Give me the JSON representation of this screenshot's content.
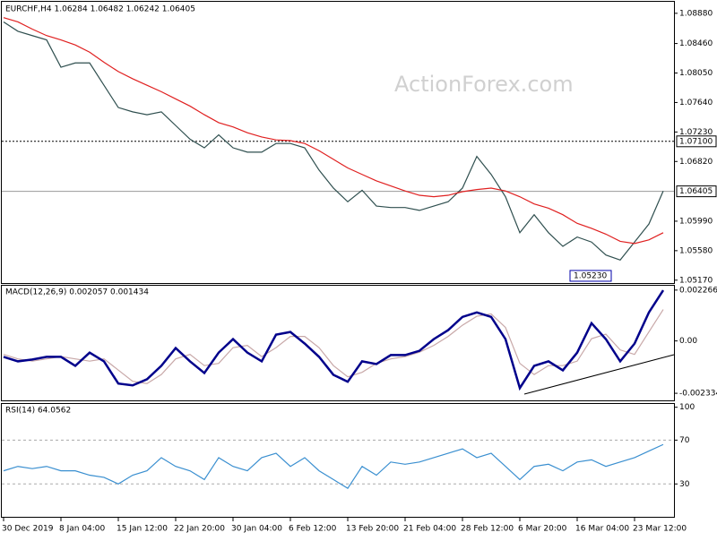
{
  "chart_data": [
    {
      "type": "line",
      "title": "EURCHF,H4  1.06284 1.06482 1.06242 1.06405",
      "watermark": "ActionForex.com",
      "ylim": [
        1.0513,
        1.0904
      ],
      "yticks": [
        {
          "value": 1.0888,
          "label": "1.08880"
        },
        {
          "value": 1.0846,
          "label": "1.08460"
        },
        {
          "value": 1.0805,
          "label": "1.08050"
        },
        {
          "value": 1.0764,
          "label": "1.07640"
        },
        {
          "value": 1.0723,
          "label": "1.07230"
        },
        {
          "value": 1.0682,
          "label": "1.06820"
        },
        {
          "value": 1.0599,
          "label": "1.05990"
        },
        {
          "value": 1.0558,
          "label": "1.05580"
        },
        {
          "value": 1.0517,
          "label": "1.05170"
        }
      ],
      "levels": [
        {
          "value": 1.071,
          "label": "1.07100"
        },
        {
          "value": 1.06405,
          "label": "1.06405"
        }
      ],
      "low_label": {
        "value": 1.0523,
        "label": "1.05230"
      },
      "series": [
        {
          "color": "#2f4f4f",
          "values": [
            1.0876,
            1.0863,
            1.0857,
            1.0851,
            1.0813,
            1.0819,
            1.0819,
            1.0788,
            1.0757,
            1.0751,
            1.0747,
            1.0751,
            1.0732,
            1.0713,
            1.0701,
            1.0719,
            1.0701,
            1.0695,
            1.0695,
            1.0707,
            1.0707,
            1.0701,
            1.067,
            1.0645,
            1.0626,
            1.0642,
            1.062,
            1.0618,
            1.0618,
            1.0614,
            1.062,
            1.0626,
            1.0645,
            1.0689,
            1.0664,
            1.0633,
            1.0583,
            1.0608,
            1.0583,
            1.0564,
            1.0577,
            1.057,
            1.0552,
            1.0545,
            1.057,
            1.0595,
            1.0641
          ]
        },
        {
          "color": "#e02020",
          "values": [
            1.0882,
            1.0876,
            1.0866,
            1.0857,
            1.0851,
            1.0844,
            1.0834,
            1.082,
            1.0807,
            1.0797,
            1.0788,
            1.0779,
            1.0769,
            1.0759,
            1.0747,
            1.0736,
            1.073,
            1.0722,
            1.0716,
            1.0712,
            1.0711,
            1.0707,
            1.0697,
            1.0685,
            1.0673,
            1.0664,
            1.0655,
            1.0648,
            1.0641,
            1.0635,
            1.0633,
            1.0635,
            1.064,
            1.0643,
            1.0645,
            1.0641,
            1.0633,
            1.0623,
            1.0617,
            1.0608,
            1.0596,
            1.0589,
            1.0581,
            1.0571,
            1.0568,
            1.0573,
            1.0583
          ]
        }
      ]
    },
    {
      "type": "line",
      "title": "MACD(12,26,9) 0.002057 0.001434",
      "ylim": [
        -0.00265,
        0.00246
      ],
      "yticks": [
        0.002266,
        {
          "value": 0,
          "label": "0.00"
        },
        -0.002334
      ],
      "series": [
        {
          "color": "#c8a8a8",
          "values": [
            -0.0006,
            -0.0008,
            -0.0009,
            -0.0008,
            -0.0007,
            -0.0008,
            -0.0009,
            -0.0008,
            -0.0013,
            -0.0018,
            -0.0019,
            -0.0015,
            -0.0008,
            -0.0006,
            -0.0011,
            -0.001,
            -0.0003,
            -0.0002,
            -0.0007,
            -0.0003,
            0.0002,
            0.0002,
            -0.0003,
            -0.0011,
            -0.0016,
            -0.0014,
            -0.001,
            -0.0008,
            -0.0007,
            -0.0005,
            -0.0002,
            0.0002,
            0.0007,
            0.0011,
            0.0012,
            0.0006,
            -0.001,
            -0.0015,
            -0.0011,
            -0.0011,
            -0.0009,
            0.0001,
            0.0003,
            -0.0004,
            -0.0006,
            0.0004,
            0.0014
          ]
        },
        {
          "color": "#00008b",
          "values": [
            -0.00071,
            -0.00091,
            -0.00083,
            -0.00071,
            -0.00071,
            -0.00111,
            -0.00052,
            -0.00091,
            -0.0019,
            -0.00198,
            -0.00171,
            -0.00111,
            -0.00032,
            -0.00091,
            -0.00143,
            -0.00052,
            8e-05,
            -0.00052,
            -0.00091,
            0.00028,
            0.0004,
            -0.00012,
            -0.00071,
            -0.00151,
            -0.00182,
            -0.00091,
            -0.00103,
            -0.00063,
            -0.00063,
            -0.00044,
            8e-05,
            0.00048,
            0.00107,
            0.00127,
            0.00107,
            8e-05,
            -0.0021,
            -0.00111,
            -0.00091,
            -0.00131,
            -0.00052,
            0.00079,
            8e-05,
            -0.00091,
            -0.00012,
            0.00127,
            0.00226
          ]
        }
      ]
    },
    {
      "type": "line",
      "title": "RSI(14) 64.0562",
      "ylim": [
        0,
        103
      ],
      "yticks": [
        100,
        70,
        30
      ],
      "dashed_levels": [
        70,
        30
      ],
      "categories": [
        "30 Dec 2019",
        null,
        null,
        null,
        "8 Jan 04:00",
        null,
        null,
        null,
        "15 Jan 12:00",
        null,
        null,
        null,
        "22 Jan 20:00",
        null,
        null,
        null,
        "30 Jan 04:00",
        null,
        null,
        null,
        "6 Feb 12:00",
        null,
        null,
        null,
        "13 Feb 20:00",
        null,
        null,
        null,
        "21 Feb 04:00",
        null,
        null,
        null,
        "28 Feb 12:00",
        null,
        null,
        null,
        "6 Mar 20:00",
        null,
        null,
        null,
        "16 Mar 04:00",
        null,
        null,
        null,
        "23 Mar 12:00",
        null,
        null
      ],
      "series": [
        {
          "color": "#3a8fd0",
          "values": [
            42,
            46,
            44,
            46,
            42,
            42,
            38,
            36,
            30,
            38,
            42,
            54,
            46,
            42,
            34,
            54,
            46,
            42,
            54,
            58,
            46,
            54,
            42,
            34,
            26,
            46,
            38,
            50,
            48,
            50,
            54,
            58,
            62,
            54,
            58,
            46,
            34,
            46,
            48,
            42,
            50,
            52,
            46,
            50,
            54,
            60,
            66
          ]
        }
      ]
    }
  ]
}
